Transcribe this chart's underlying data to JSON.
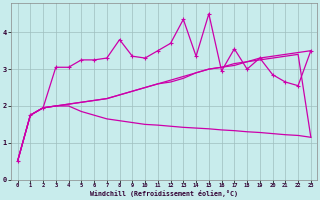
{
  "title": "",
  "xlabel": "Windchill (Refroidissement éolien,°C)",
  "bg_color": "#c8ecec",
  "grid_color": "#b0d0d0",
  "line_color": "#cc00aa",
  "xlim": [
    -0.5,
    23.5
  ],
  "ylim": [
    0,
    4.8
  ],
  "xticks": [
    0,
    1,
    2,
    3,
    4,
    5,
    6,
    7,
    8,
    9,
    10,
    11,
    12,
    13,
    14,
    15,
    16,
    17,
    18,
    19,
    20,
    21,
    22,
    23
  ],
  "yticks": [
    0,
    1,
    2,
    3,
    4
  ],
  "series": [
    {
      "x": [
        0,
        1,
        2,
        3,
        4,
        5,
        6,
        7,
        8,
        9,
        10,
        11,
        12,
        13,
        14,
        15,
        16,
        17,
        18,
        19,
        20,
        21,
        22,
        23
      ],
      "y": [
        0.5,
        1.75,
        1.95,
        2.0,
        2.05,
        2.1,
        2.15,
        2.2,
        2.3,
        2.4,
        2.5,
        2.6,
        2.7,
        2.8,
        2.9,
        3.0,
        3.05,
        3.15,
        3.2,
        3.3,
        3.35,
        3.4,
        3.45,
        3.5
      ],
      "marker": false,
      "linestyle": "-",
      "linewidth": 0.9
    },
    {
      "x": [
        0,
        1,
        2,
        3,
        4,
        5,
        6,
        7,
        8,
        9,
        10,
        11,
        12,
        13,
        14,
        15,
        16,
        17,
        18,
        19,
        20,
        21,
        22,
        23
      ],
      "y": [
        0.5,
        1.75,
        1.95,
        3.05,
        3.05,
        3.25,
        3.25,
        3.3,
        3.8,
        3.35,
        3.3,
        3.5,
        3.7,
        4.35,
        3.35,
        4.5,
        2.95,
        3.55,
        3.0,
        3.3,
        2.85,
        2.65,
        2.55,
        3.5
      ],
      "marker": true,
      "linestyle": "-",
      "linewidth": 0.9
    },
    {
      "x": [
        0,
        1,
        2,
        3,
        4,
        5,
        6,
        7,
        8,
        9,
        10,
        11,
        12,
        13,
        14,
        15,
        16,
        17,
        18,
        19,
        20,
        21,
        22,
        23
      ],
      "y": [
        0.5,
        1.75,
        1.95,
        2.0,
        2.05,
        2.1,
        2.15,
        2.2,
        2.3,
        2.4,
        2.5,
        2.6,
        2.65,
        2.75,
        2.9,
        3.0,
        3.05,
        3.1,
        3.2,
        3.25,
        3.3,
        3.35,
        3.4,
        1.15
      ],
      "marker": false,
      "linestyle": "-",
      "linewidth": 0.9
    },
    {
      "x": [
        0,
        1,
        2,
        3,
        4,
        5,
        6,
        7,
        8,
        9,
        10,
        11,
        12,
        13,
        14,
        15,
        16,
        17,
        18,
        19,
        20,
        21,
        22,
        23
      ],
      "y": [
        0.5,
        1.75,
        1.95,
        2.0,
        2.0,
        1.85,
        1.75,
        1.65,
        1.6,
        1.55,
        1.5,
        1.48,
        1.45,
        1.42,
        1.4,
        1.38,
        1.35,
        1.33,
        1.3,
        1.28,
        1.25,
        1.22,
        1.2,
        1.15
      ],
      "marker": false,
      "linestyle": "-",
      "linewidth": 0.9
    }
  ]
}
